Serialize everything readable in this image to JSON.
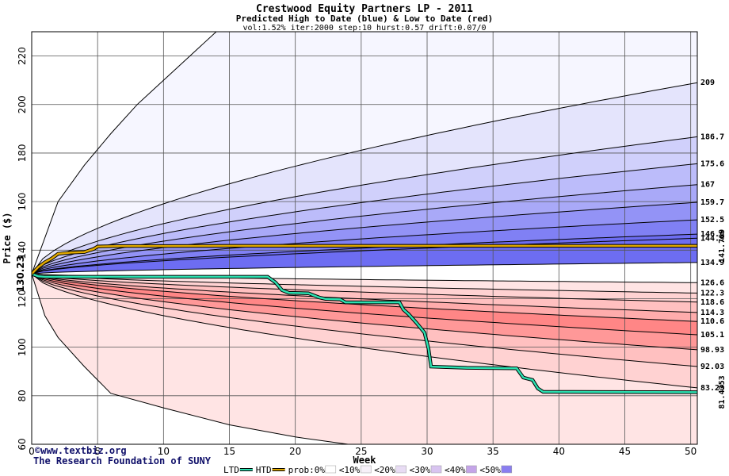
{
  "chart_data": {
    "type": "area",
    "title": "Crestwood Equity Partners LP - 2011",
    "subtitle": "Predicted High to Date (blue) &  Low to Date (red)",
    "params": "vol:1.52% iter:2000 step:10 hurst:0.57 drift:0.07/0",
    "xlabel": "Week",
    "ylabel": "Price ($)",
    "xlim": [
      0,
      50.5
    ],
    "ylim": [
      60,
      230
    ],
    "x_ticks": [
      0,
      5,
      10,
      15,
      20,
      25,
      30,
      35,
      40,
      45,
      50
    ],
    "y_ticks": [
      60,
      80,
      100,
      120,
      140,
      160,
      180,
      200,
      220
    ],
    "grid": true,
    "start_price": 130.23,
    "start_price_label": "130.23",
    "high_curves": [
      {
        "label": "209",
        "end": 209
      },
      {
        "label": "186.7",
        "end": 186.7
      },
      {
        "label": "175.6",
        "end": 175.6
      },
      {
        "label": "167",
        "end": 167
      },
      {
        "label": "159.7",
        "end": 159.7
      },
      {
        "label": "152.5",
        "end": 152.5
      },
      {
        "label": "146.6",
        "end": 146.6
      },
      {
        "label": "144.9",
        "end": 144.9
      },
      {
        "label": "134.9",
        "end": 134.9
      }
    ],
    "low_curves": [
      {
        "label": "126.6",
        "end": 126.6
      },
      {
        "label": "122.3",
        "end": 122.3
      },
      {
        "label": "118.6",
        "end": 118.6
      },
      {
        "label": "114.3",
        "end": 114.3
      },
      {
        "label": "110.6",
        "end": 110.6
      },
      {
        "label": "105.1",
        "end": 105.1
      },
      {
        "label": "98.93",
        "end": 98.93
      },
      {
        "label": "92.03",
        "end": 92.03
      },
      {
        "label": "83.23",
        "end": 83.23
      }
    ],
    "outer_high": {
      "x": [
        0,
        2,
        4,
        6,
        8,
        10,
        12,
        14
      ],
      "y": [
        130.23,
        160,
        175,
        188,
        200,
        210,
        220,
        230
      ]
    },
    "outer_low": {
      "x": [
        0,
        1,
        2,
        4,
        6,
        10,
        15,
        20,
        24,
        30,
        40,
        50.5
      ],
      "y": [
        130.23,
        113,
        104,
        92,
        81,
        75,
        68,
        63,
        60,
        60,
        60,
        60
      ]
    },
    "htd_series": {
      "name": "HTD",
      "end_label": "141.769",
      "x": [
        0,
        0.5,
        1,
        1.5,
        2,
        3,
        4,
        4.7,
        5,
        6,
        7,
        8,
        10,
        15,
        20,
        25,
        30,
        40,
        50.5
      ],
      "y": [
        130.23,
        133,
        135,
        136.5,
        138.5,
        139,
        139.2,
        140.5,
        141.5,
        141.6,
        141.7,
        141.7,
        141.7,
        141.75,
        141.75,
        141.77,
        141.77,
        141.77,
        141.769
      ]
    },
    "ltd_series": {
      "name": "LTD",
      "end_label": "81.4353",
      "x": [
        0,
        0.5,
        1,
        5,
        10,
        15,
        17.9,
        18.5,
        19,
        19.5,
        21,
        21.8,
        22.3,
        23.4,
        23.8,
        27.9,
        28.2,
        28.6,
        29.2,
        29.8,
        30.1,
        30.3,
        33,
        36.8,
        37.3,
        38,
        38.4,
        38.8,
        50.5
      ],
      "y": [
        130.23,
        129.2,
        129,
        129,
        129,
        129,
        129,
        126.7,
        123.5,
        122.4,
        122.2,
        120.5,
        119.9,
        119.7,
        118.5,
        118.5,
        115.5,
        113.6,
        110,
        106,
        99.5,
        92,
        91.5,
        91.3,
        87.5,
        86.5,
        83,
        81.6,
        81.4353
      ]
    },
    "colors": {
      "ltd": "#2ce0b0",
      "htd": "#e0a800",
      "blue_bands": [
        "#f6f6ff",
        "#e4e4fc",
        "#d0d0fb",
        "#bcbcfa",
        "#a9a9f8",
        "#9393f6",
        "#8080f4",
        "#6d6df2"
      ],
      "red_bands": [
        "#fff4f4",
        "#ffe4e4",
        "#ffd2d2",
        "#ffc0c0",
        "#ffacac",
        "#ff9898",
        "#ff8686"
      ],
      "htd_label": "#b8860b",
      "ltd_label": "#0a9e70",
      "credit": "#10106a"
    },
    "credit_lines": [
      "©www.textbiz.org",
      "The Research Foundation of SUNY"
    ],
    "legend": [
      {
        "label": "LTD",
        "kind": "line",
        "color": "#2ce0b0"
      },
      {
        "label": "HTD",
        "kind": "line",
        "color": "#e0a800"
      },
      {
        "label": "prob:0%",
        "kind": "swatch",
        "color": "#ffffff"
      },
      {
        "label": "<10%",
        "kind": "swatch",
        "color": "#f6f0f8"
      },
      {
        "label": "<20%",
        "kind": "swatch",
        "color": "#e8dcf4"
      },
      {
        "label": "<30%",
        "kind": "swatch",
        "color": "#d8c4f0"
      },
      {
        "label": "<40%",
        "kind": "swatch",
        "color": "#c4a4e8"
      },
      {
        "label": "<50%",
        "kind": "swatch",
        "color": "#8a7ef0"
      }
    ]
  }
}
